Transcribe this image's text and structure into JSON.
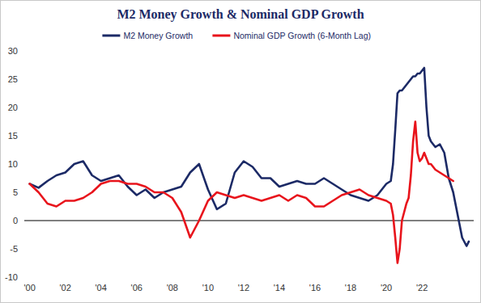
{
  "chart_data": {
    "type": "line",
    "title": "M2 Money Growth & Nominal GDP Growth",
    "legend": "top",
    "grid": false,
    "x": [
      2000.0,
      2000.5,
      2001.0,
      2001.5,
      2002.0,
      2002.5,
      2003.0,
      2003.5,
      2004.0,
      2004.5,
      2005.0,
      2005.5,
      2006.0,
      2006.5,
      2007.0,
      2007.5,
      2008.0,
      2008.5,
      2009.0,
      2009.5,
      2010.0,
      2010.5,
      2011.0,
      2011.5,
      2012.0,
      2012.5,
      2013.0,
      2013.5,
      2014.0,
      2014.5,
      2015.0,
      2015.5,
      2016.0,
      2016.5,
      2017.0,
      2017.5,
      2018.0,
      2018.5,
      2019.0,
      2019.5,
      2020.0,
      2020.25,
      2020.375,
      2020.5,
      2020.625,
      2020.75,
      2020.875,
      2021.0,
      2021.125,
      2021.25,
      2021.375,
      2021.5,
      2021.625,
      2021.75,
      2021.875,
      2022.0,
      2022.125,
      2022.25,
      2022.375,
      2022.5,
      2022.75,
      2023.0,
      2023.25,
      2023.5,
      2023.75,
      2024.0,
      2024.25,
      2024.5,
      2024.625
    ],
    "series": [
      {
        "name": "M2 Money Growth",
        "color": "#1c2a66",
        "values": [
          6.5,
          5.8,
          7,
          8,
          8.5,
          10,
          10.5,
          8,
          7,
          7.5,
          8,
          6,
          4.5,
          5.5,
          4,
          5,
          5.5,
          6,
          8.5,
          10,
          5.5,
          2,
          3,
          8.5,
          10.5,
          9.5,
          7.5,
          7.5,
          6,
          6.5,
          7,
          6.5,
          6.5,
          7.5,
          6.5,
          5.5,
          4.5,
          4,
          3.5,
          4.5,
          6.5,
          7,
          10,
          16,
          22.5,
          23,
          23,
          23.5,
          24,
          24.5,
          25,
          25.5,
          25.5,
          26,
          26,
          26.5,
          27,
          20,
          15,
          14,
          13,
          13.5,
          12,
          7.5,
          5,
          1,
          -3,
          -4.5,
          -3.7
        ]
      },
      {
        "name": "Nominal GDP Growth (6-Month Lag)",
        "color": "#e8141c",
        "values": [
          6.5,
          5,
          3,
          2.5,
          3.5,
          3.5,
          4,
          5,
          6.5,
          7,
          7,
          6.5,
          6.5,
          6,
          5,
          5,
          4,
          1.5,
          -3,
          0,
          3.5,
          5,
          4.5,
          4,
          4.5,
          4,
          3.5,
          4,
          4.5,
          3.5,
          4.5,
          4,
          2.5,
          2.5,
          3.5,
          4.5,
          5,
          5.5,
          4.5,
          4,
          3.5,
          3,
          1,
          -3,
          -7.5,
          -5,
          0,
          1.5,
          3,
          4,
          8,
          14,
          17.5,
          12,
          10.5,
          11,
          12,
          11,
          10,
          10,
          9,
          8.5,
          8,
          7.5,
          7,
          null,
          null,
          null,
          null
        ]
      }
    ],
    "xlim": [
      1999.7,
      2024.9
    ],
    "xticks": [
      {
        "value": 2000,
        "label": "'00"
      },
      {
        "value": 2002,
        "label": "'02"
      },
      {
        "value": 2004,
        "label": "'04"
      },
      {
        "value": 2006,
        "label": "'06"
      },
      {
        "value": 2008,
        "label": "'08"
      },
      {
        "value": 2010,
        "label": "'10"
      },
      {
        "value": 2012,
        "label": "'12"
      },
      {
        "value": 2014,
        "label": "'14"
      },
      {
        "value": 2016,
        "label": "'16"
      },
      {
        "value": 2018,
        "label": "'18"
      },
      {
        "value": 2020,
        "label": "'20"
      },
      {
        "value": 2022,
        "label": "'22"
      }
    ],
    "ylim": [
      -10,
      30
    ],
    "yticks": [
      -10,
      -5,
      0,
      5,
      10,
      15,
      20,
      25,
      30
    ]
  }
}
